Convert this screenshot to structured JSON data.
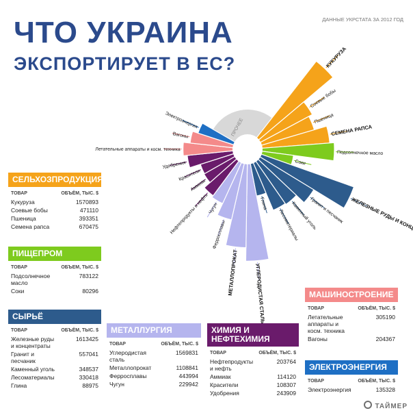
{
  "title_line1": "ЧТО УКРАИНА",
  "title_line2": "ЭКСПОРТИРУЕТ В ЕС?",
  "source": "ДАННЫЕ УКРСТАТА ЗА 2012 ГОД",
  "logo": "ТАЙМЕР",
  "colors": {
    "title": "#2b4a8c",
    "agro": "#f5a31a",
    "food": "#7ecb1e",
    "raw": "#2d5b8c",
    "metal": "#b5b5ee",
    "chem": "#6a1b6b",
    "mach": "#f48a8a",
    "energy": "#1e6fc4",
    "other": "#d8d8d8"
  },
  "chart_data": {
    "type": "pie",
    "other_label": "ПРОЧЕЕ",
    "slices": [
      {
        "group": "agro",
        "label": "Кукуруза",
        "value": 1570893,
        "bold": true
      },
      {
        "group": "agro",
        "label": "Соевые бобы",
        "value": 471110,
        "bold": false
      },
      {
        "group": "agro",
        "label": "Пшеница",
        "value": 393351,
        "bold": false
      },
      {
        "group": "agro",
        "label": "Семена рапса",
        "value": 670475,
        "bold": true
      },
      {
        "group": "food",
        "label": "Подсолнечное масло",
        "value": 783122,
        "bold": false
      },
      {
        "group": "food",
        "label": "Соки",
        "value": 80296,
        "bold": false
      },
      {
        "group": "raw",
        "label": "Железные руды и концентраты",
        "value": 1613425,
        "bold": true
      },
      {
        "group": "raw",
        "label": "Гранит и песчаник",
        "value": 557041,
        "bold": false
      },
      {
        "group": "raw",
        "label": "Каменный уголь",
        "value": 348537,
        "bold": false
      },
      {
        "group": "raw",
        "label": "Лесоматериалы",
        "value": 330418,
        "bold": false
      },
      {
        "group": "raw",
        "label": "Глина",
        "value": 88975,
        "bold": false
      },
      {
        "group": "metal",
        "label": "Углеродистая сталь",
        "value": 1569831,
        "bold": true
      },
      {
        "group": "metal",
        "label": "Металлопрокат",
        "value": 1108841,
        "bold": true
      },
      {
        "group": "metal",
        "label": "Ферросплавы",
        "value": 443994,
        "bold": false
      },
      {
        "group": "metal",
        "label": "Чугун",
        "value": 229942,
        "bold": false
      },
      {
        "group": "chem",
        "label": "Нефтепродукты и нефть",
        "value": 203764,
        "bold": false
      },
      {
        "group": "chem",
        "label": "Аммиак",
        "value": 114120,
        "bold": false
      },
      {
        "group": "chem",
        "label": "Красители",
        "value": 108307,
        "bold": false
      },
      {
        "group": "chem",
        "label": "Удобрения",
        "value": 243909,
        "bold": false
      },
      {
        "group": "mach",
        "label": "Летательные аппараты и косм. техника",
        "value": 305190,
        "bold": false
      },
      {
        "group": "mach",
        "label": "Вагоны",
        "value": 204367,
        "bold": false
      },
      {
        "group": "energy",
        "label": "Электроэнергия",
        "value": 135328,
        "bold": false
      }
    ]
  },
  "panels": {
    "agro": {
      "title": "СЕЛЬХОЗПРОДУКЦИЯ",
      "col_name": "ТОВАР",
      "col_val": "ОБЪЁМ, ТЫС. $",
      "rows": [
        {
          "n": "Кукуруза",
          "v": "1570893"
        },
        {
          "n": "Соевые бобы",
          "v": "471110"
        },
        {
          "n": "Пшеница",
          "v": "393351"
        },
        {
          "n": "Семена рапса",
          "v": "670475"
        }
      ]
    },
    "food": {
      "title": "ПИЩЕПРОМ",
      "col_name": "ТОВАР",
      "col_val": "ОБЪЕМ, ТЫС. $",
      "rows": [
        {
          "n": "Подсолнечное масло",
          "v": "783122"
        },
        {
          "n": "Соки",
          "v": "80296"
        }
      ]
    },
    "raw": {
      "title": "СЫРЬЁ",
      "col_name": "ТОВАР",
      "col_val": "ОБЪЁМ, ТЫС. $",
      "rows": [
        {
          "n": "Железные руды и концентраты",
          "v": "1613425"
        },
        {
          "n": "Гранит и песчаник",
          "v": "557041"
        },
        {
          "n": "Каменный уголь",
          "v": "348537"
        },
        {
          "n": "Лесоматериалы",
          "v": "330418"
        },
        {
          "n": "Глина",
          "v": "88975"
        }
      ]
    },
    "metal": {
      "title": "МЕТАЛЛУРГИЯ",
      "col_name": "ТОВАР",
      "col_val": "ОБЪЁМ, ТЫС. $",
      "rows": [
        {
          "n": "Углеродистая сталь",
          "v": "1569831"
        },
        {
          "n": "Металлопрокат",
          "v": "1108841"
        },
        {
          "n": "Ферросплавы",
          "v": "443994"
        },
        {
          "n": "Чугун",
          "v": "229942"
        }
      ]
    },
    "chem": {
      "title": "ХИМИЯ И НЕФТЕХИМИЯ",
      "col_name": "ТОВАР",
      "col_val": "ОБЪЁМ, ТЫС. $",
      "rows": [
        {
          "n": "Нефтепродукты и нефть",
          "v": "203764"
        },
        {
          "n": "Аммиак",
          "v": "114120"
        },
        {
          "n": "Красители",
          "v": "108307"
        },
        {
          "n": "Удобрения",
          "v": "243909"
        }
      ]
    },
    "mach": {
      "title": "МАШИНОСТРОЕНИЕ",
      "col_name": "ТОВАР",
      "col_val": "ОБЪЁМ, ТЫС. $",
      "rows": [
        {
          "n": "Летательные аппараты и косм. техника",
          "v": "305190"
        },
        {
          "n": "Вагоны",
          "v": "204367"
        }
      ]
    },
    "energy": {
      "title": "ЭЛЕКТРОЭНЕРГИЯ",
      "col_name": "ТОВАР",
      "col_val": "ОБЪЁМ, ТЫС. $",
      "rows": [
        {
          "n": "Электроэнергия",
          "v": "135328"
        }
      ]
    }
  }
}
